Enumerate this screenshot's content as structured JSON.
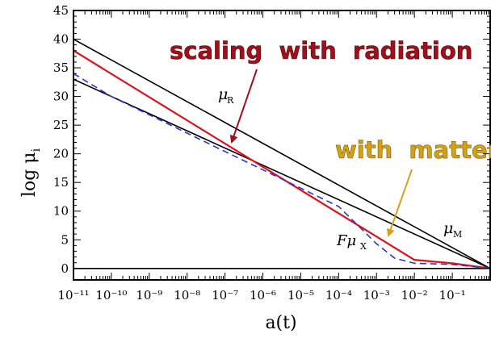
{
  "chart_data": {
    "type": "line",
    "xscale": "log",
    "xlim": [
      1e-11,
      1
    ],
    "ylim": [
      -2,
      45
    ],
    "xlabel": "a(t)",
    "ylabel": "log μ",
    "ylabel_subscript": "i",
    "x_tick_labels": [
      "10⁻¹¹",
      "10⁻¹⁰",
      "10⁻⁹",
      "10⁻⁸",
      "10⁻⁷",
      "10⁻⁶",
      "10⁻⁵",
      "10⁻⁴",
      "10⁻³",
      "10⁻²",
      "10⁻¹"
    ],
    "y_tick_labels": [
      "0",
      "5",
      "10",
      "15",
      "20",
      "25",
      "30",
      "35",
      "40",
      "45"
    ],
    "y_ticks": [
      0,
      5,
      10,
      15,
      20,
      25,
      30,
      35,
      40,
      45
    ],
    "x_tick_values": [
      1e-11,
      1e-10,
      1e-09,
      1e-08,
      1e-07,
      1e-06,
      1e-05,
      0.0001,
      0.001,
      0.01,
      0.1
    ],
    "series": [
      {
        "key": "mu_R",
        "color": "#000000",
        "style": "solid",
        "x": [
          1e-11,
          1
        ],
        "y": [
          40,
          0
        ]
      },
      {
        "key": "mu_M",
        "color": "#000000",
        "style": "solid",
        "x": [
          1e-11,
          1
        ],
        "y": [
          33,
          0
        ]
      },
      {
        "key": "zero",
        "color": "#000000",
        "style": "solid",
        "x": [
          1e-11,
          1
        ],
        "y": [
          0,
          0
        ]
      },
      {
        "key": "red",
        "color": "#e0101a",
        "style": "solid",
        "x": [
          1e-11,
          0.01,
          0.1,
          1
        ],
        "y": [
          38,
          1.5,
          0.9,
          0
        ]
      },
      {
        "key": "F_mu_X",
        "color": "#2a35d8",
        "style": "dashed",
        "x": [
          1e-11,
          1e-10,
          1e-09,
          1e-08,
          1e-07,
          1e-06,
          1e-05,
          0.0001,
          0.001,
          0.003,
          0.01,
          0.1,
          1
        ],
        "y": [
          34,
          30,
          26.8,
          23.6,
          20.4,
          17.2,
          14,
          10.8,
          4.3,
          1.8,
          0.9,
          0.7,
          0
        ]
      }
    ],
    "labels": {
      "mu_R": {
        "main": "μ",
        "sub": "R"
      },
      "mu_M": {
        "main": "μ",
        "sub": "M"
      },
      "F_mu_X": {
        "main": "Fμ",
        "sub": "X"
      }
    },
    "annotations": [
      {
        "text": "scaling  with  radiation",
        "color": "#a0101a"
      },
      {
        "text": "with  matter",
        "color": "#d4a017"
      }
    ],
    "arrow_colors": {
      "radiation": "#a0101a",
      "matter": "#d4a017"
    }
  }
}
